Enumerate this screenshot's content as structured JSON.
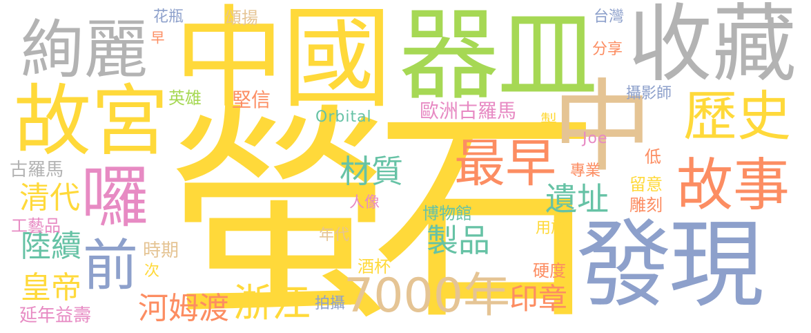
{
  "palette": {
    "yellow": "#FFD93A",
    "green": "#A6D854",
    "gray": "#B3B3B3",
    "tan": "#E5C494",
    "blue": "#8DA0CB",
    "orange": "#FC8D62",
    "pink": "#E78AC3",
    "teal": "#66C2A5"
  },
  "words": [
    {
      "text": "螢石",
      "color": "yellow"
    },
    {
      "text": "中國",
      "color": "yellow"
    },
    {
      "text": "器皿",
      "color": "green"
    },
    {
      "text": "收藏",
      "color": "gray"
    },
    {
      "text": "中",
      "color": "tan"
    },
    {
      "text": "發現",
      "color": "blue"
    },
    {
      "text": "故宮",
      "color": "yellow"
    },
    {
      "text": "絢麗",
      "color": "gray"
    },
    {
      "text": "歷史",
      "color": "yellow"
    },
    {
      "text": "故事",
      "color": "orange"
    },
    {
      "text": "囉",
      "color": "pink"
    },
    {
      "text": "前",
      "color": "blue"
    },
    {
      "text": "最早",
      "color": "orange"
    },
    {
      "text": "7000年",
      "color": "tan"
    },
    {
      "text": "浙江",
      "color": "yellow"
    },
    {
      "text": "河姆渡",
      "color": "orange"
    },
    {
      "text": "材質",
      "color": "teal"
    },
    {
      "text": "遺址",
      "color": "teal"
    },
    {
      "text": "製品",
      "color": "teal"
    },
    {
      "text": "清代",
      "color": "yellow"
    },
    {
      "text": "陸續",
      "color": "teal"
    },
    {
      "text": "皇帝",
      "color": "yellow"
    },
    {
      "text": "印章",
      "color": "orange"
    },
    {
      "text": "博物館",
      "color": "teal"
    },
    {
      "text": "歐洲古羅馬",
      "color": "pink"
    },
    {
      "text": "延年益壽",
      "color": "pink"
    },
    {
      "text": "工藝品",
      "color": "pink"
    },
    {
      "text": "古羅馬",
      "color": "gray"
    },
    {
      "text": "英雄",
      "color": "green"
    },
    {
      "text": "堅信",
      "color": "orange"
    },
    {
      "text": "Orbital",
      "color": "teal"
    },
    {
      "text": "花瓶",
      "color": "blue"
    },
    {
      "text": "早",
      "color": "orange"
    },
    {
      "text": "頌揚",
      "color": "tan"
    },
    {
      "text": "台灣",
      "color": "blue"
    },
    {
      "text": "分享",
      "color": "orange"
    },
    {
      "text": "攝影師",
      "color": "blue"
    },
    {
      "text": "Joe",
      "color": "pink"
    },
    {
      "text": "製",
      "color": "yellow"
    },
    {
      "text": "專業",
      "color": "orange"
    },
    {
      "text": "低",
      "color": "orange"
    },
    {
      "text": "留意",
      "color": "yellow"
    },
    {
      "text": "雕刻",
      "color": "orange"
    },
    {
      "text": "人像",
      "color": "pink"
    },
    {
      "text": "用於",
      "color": "yellow"
    },
    {
      "text": "年代",
      "color": "tan"
    },
    {
      "text": "時期",
      "color": "tan"
    },
    {
      "text": "次",
      "color": "yellow"
    },
    {
      "text": "酒杯",
      "color": "yellow"
    },
    {
      "text": "硬度",
      "color": "orange"
    },
    {
      "text": "拍攝",
      "color": "blue"
    }
  ]
}
